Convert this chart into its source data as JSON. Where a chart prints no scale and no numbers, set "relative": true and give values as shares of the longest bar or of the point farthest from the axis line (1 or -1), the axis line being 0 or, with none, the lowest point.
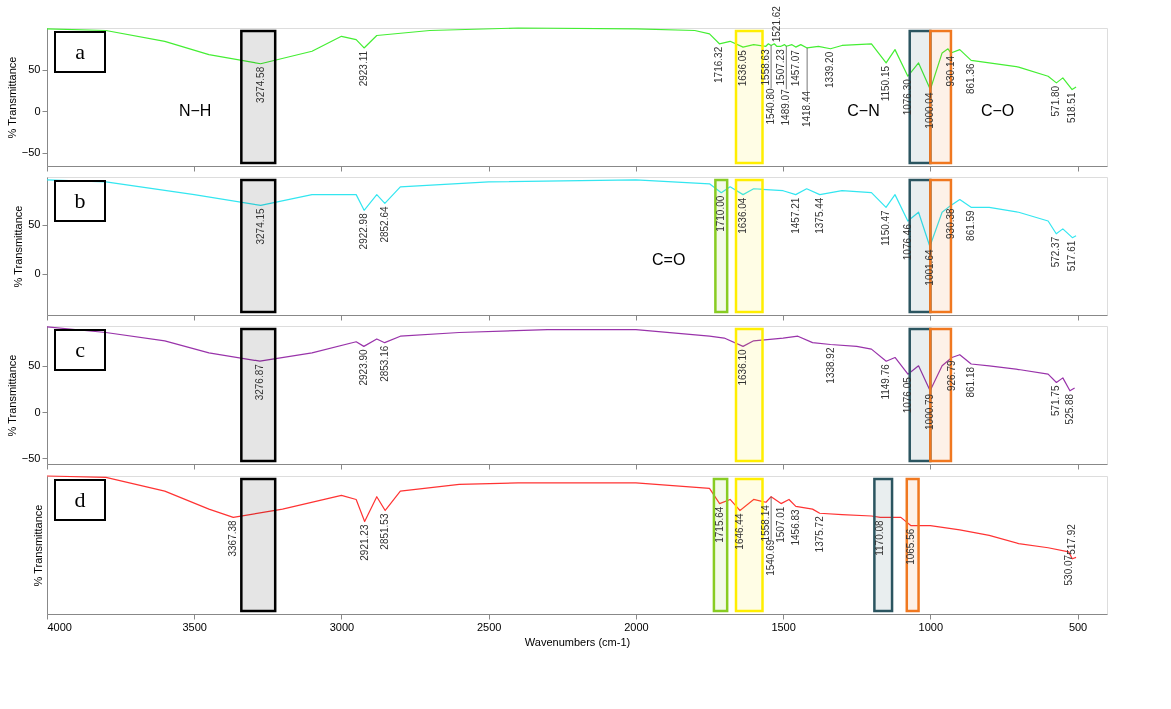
{
  "chart_data": [
    {
      "type": "line",
      "ylabel": "% Transmittance",
      "xlim": [
        4000,
        400
      ],
      "xticks": [
        4000,
        3500,
        3000,
        2500,
        2000,
        1500,
        1000,
        500
      ],
      "ylim": [
        -66,
        100
      ],
      "yticks": [
        50,
        0,
        -50
      ],
      "tick_labels": "y",
      "series": [
        {
          "color": "#44ee33",
          "x": [
            4000,
            3800,
            3600,
            3450,
            3274.58,
            3100,
            3000,
            2950,
            2923.11,
            2880,
            2700,
            2400,
            2000,
            1800,
            1750,
            1716.32,
            1680,
            1636.05,
            1600,
            1558.63,
            1550,
            1540.8,
            1530,
            1521.62,
            1507.23,
            1495,
            1489.07,
            1470,
            1457.07,
            1440,
            1418.44,
            1380,
            1339.2,
            1300,
            1200,
            1150.15,
            1120,
            1076.3,
            1040,
            1000.04,
            960,
            940,
            930.14,
            900,
            861.36,
            800,
            700,
            600,
            571.8,
            550,
            518.51,
            505
          ],
          "values": [
            99,
            97,
            84,
            68,
            57,
            72,
            90,
            86,
            76,
            91,
            97,
            100,
            99,
            97,
            93,
            81,
            84,
            77,
            80,
            78,
            81,
            79,
            81,
            78,
            78,
            80,
            78,
            80,
            77,
            80,
            76,
            78,
            75,
            79,
            81,
            58,
            74,
            42,
            58,
            26,
            70,
            75,
            70,
            74,
            61,
            58,
            53,
            42,
            34,
            40,
            26,
            29
          ]
        }
      ],
      "bands": [
        {
          "axis": "x",
          "from": 3340,
          "to": 3225,
          "label": "N−H",
          "color": "#000000"
        },
        {
          "axis": "x",
          "from": 1660,
          "to": 1570,
          "label": null,
          "color": "#ffee00"
        },
        {
          "axis": "x",
          "from": 1070,
          "to": 1000,
          "label": "C−N",
          "color": "#2b5560"
        },
        {
          "axis": "x",
          "from": 1000,
          "to": 930,
          "label": "C−O",
          "color": "#f07820"
        }
      ],
      "annotations": [
        "a",
        {
          "text": "3274.58",
          "x": 3274.58,
          "y": 57
        },
        {
          "text": "2923.11",
          "x": 2923.11,
          "y": 76
        },
        {
          "text": "1716.32",
          "x": 1716.32,
          "y": 81
        },
        {
          "text": "1636.05",
          "x": 1636.05,
          "y": 77
        },
        {
          "text": "1558.63",
          "x": 1558.63,
          "y": 78
        },
        {
          "text": "1540.80",
          "x": 1540.8,
          "y": 79
        },
        {
          "text": "1521.62",
          "x": 1521.62,
          "y": 78
        },
        {
          "text": "1507.23",
          "x": 1507.23,
          "y": 78
        },
        {
          "text": "1489.07",
          "x": 1489.07,
          "y": 78
        },
        {
          "text": "1457.07",
          "x": 1457.07,
          "y": 77
        },
        {
          "text": "1418.44",
          "x": 1418.44,
          "y": 76
        },
        {
          "text": "1339.20",
          "x": 1339.2,
          "y": 75
        },
        {
          "text": "1150.15",
          "x": 1150.15,
          "y": 58
        },
        {
          "text": "1076.30",
          "x": 1076.3,
          "y": 42
        },
        {
          "text": "1000.04",
          "x": 1000.04,
          "y": 26
        },
        {
          "text": "930.14",
          "x": 930.14,
          "y": 70
        },
        {
          "text": "861.36",
          "x": 861.36,
          "y": 61
        },
        {
          "text": "571.80",
          "x": 571.8,
          "y": 34
        },
        {
          "text": "518.51",
          "x": 518.51,
          "y": 26
        }
      ]
    },
    {
      "type": "line",
      "ylabel": "% Transmittance",
      "xlim": [
        4000,
        400
      ],
      "xticks": [
        4000,
        3500,
        3000,
        2500,
        2000,
        1500,
        1000,
        500
      ],
      "ylim": [
        -42,
        99
      ],
      "yticks": [
        50,
        0
      ],
      "tick_labels": "y",
      "series": [
        {
          "color": "#33e6f0",
          "x": [
            4000,
            3800,
            3500,
            3274.15,
            3100,
            2950,
            2922.98,
            2880,
            2852.64,
            2800,
            2500,
            2000,
            1750,
            1710,
            1680,
            1636.04,
            1600,
            1500,
            1457.21,
            1420,
            1375.44,
            1300,
            1200,
            1150.47,
            1120,
            1076.46,
            1040,
            1001.64,
            960,
            930.38,
            900,
            861.59,
            800,
            700,
            600,
            572.37,
            550,
            517.61,
            505
          ],
          "values": [
            96,
            94,
            81,
            70,
            81,
            81,
            65,
            81,
            72,
            89,
            94,
            96,
            92,
            83,
            89,
            81,
            87,
            85,
            81,
            87,
            81,
            85,
            83,
            68,
            81,
            54,
            63,
            28,
            63,
            70,
            76,
            68,
            68,
            63,
            54,
            41,
            46,
            37,
            39
          ]
        }
      ],
      "bands": [
        {
          "axis": "x",
          "from": 3340,
          "to": 3225,
          "label": null,
          "color": "#000000"
        },
        {
          "axis": "x",
          "from": 1730,
          "to": 1690,
          "label": "C=O",
          "color": "#88cc22"
        },
        {
          "axis": "x",
          "from": 1660,
          "to": 1570,
          "label": null,
          "color": "#ffee00"
        },
        {
          "axis": "x",
          "from": 1070,
          "to": 1000,
          "label": null,
          "color": "#2b5560"
        },
        {
          "axis": "x",
          "from": 1000,
          "to": 930,
          "label": null,
          "color": "#f07820"
        }
      ],
      "annotations": [
        "b",
        {
          "text": "3274.15",
          "x": 3274.15,
          "y": 70
        },
        {
          "text": "2922.98",
          "x": 2922.98,
          "y": 65
        },
        {
          "text": "2852.64",
          "x": 2852.64,
          "y": 72
        },
        {
          "text": "1710.00",
          "x": 1710,
          "y": 83
        },
        {
          "text": "1636.04",
          "x": 1636.04,
          "y": 81
        },
        {
          "text": "1457.21",
          "x": 1457.21,
          "y": 81
        },
        {
          "text": "1375.44",
          "x": 1375.44,
          "y": 81
        },
        {
          "text": "1150.47",
          "x": 1150.47,
          "y": 68
        },
        {
          "text": "1076.46",
          "x": 1076.46,
          "y": 54
        },
        {
          "text": "1001.64",
          "x": 1001.64,
          "y": 28
        },
        {
          "text": "930.38",
          "x": 930.38,
          "y": 70
        },
        {
          "text": "861.59",
          "x": 861.59,
          "y": 68
        },
        {
          "text": "572.37",
          "x": 572.37,
          "y": 41
        },
        {
          "text": "517.61",
          "x": 517.61,
          "y": 37
        }
      ]
    },
    {
      "type": "line",
      "ylabel": "% Transmittance",
      "xlim": [
        4000,
        400
      ],
      "xticks": [
        4000,
        3500,
        3000,
        2500,
        2000,
        1500,
        1000,
        500
      ],
      "ylim": [
        -56,
        93
      ],
      "yticks": [
        50,
        0,
        -50
      ],
      "tick_labels": "y",
      "series": [
        {
          "color": "#9933aa",
          "x": [
            4000,
            3800,
            3600,
            3450,
            3276.87,
            3100,
            2950,
            2923.9,
            2880,
            2853.16,
            2800,
            2600,
            2300,
            2000,
            1750,
            1700,
            1636.1,
            1600,
            1500,
            1450,
            1400,
            1338.92,
            1250,
            1200,
            1149.76,
            1120,
            1076.05,
            1040,
            1000.79,
            960,
            926.79,
            900,
            861.18,
            800,
            700,
            600,
            571.75,
            550,
            525.88,
            510
          ],
          "values": [
            92,
            86,
            77,
            64,
            55,
            64,
            76,
            71,
            79,
            75,
            82,
            86,
            89,
            89,
            82,
            80,
            71,
            77,
            80,
            82,
            75,
            73,
            71,
            68,
            55,
            59,
            41,
            50,
            23,
            50,
            59,
            62,
            52,
            50,
            46,
            41,
            32,
            37,
            23,
            26
          ]
        }
      ],
      "bands": [
        {
          "axis": "x",
          "from": 3340,
          "to": 3225,
          "label": null,
          "color": "#000000"
        },
        {
          "axis": "x",
          "from": 1660,
          "to": 1570,
          "label": null,
          "color": "#ffee00"
        },
        {
          "axis": "x",
          "from": 1070,
          "to": 1000,
          "label": null,
          "color": "#2b5560"
        },
        {
          "axis": "x",
          "from": 1000,
          "to": 930,
          "label": null,
          "color": "#f07820"
        }
      ],
      "annotations": [
        "c",
        {
          "text": "3276.87",
          "x": 3276.87,
          "y": 55
        },
        {
          "text": "2923.90",
          "x": 2923.9,
          "y": 71
        },
        {
          "text": "2853.16",
          "x": 2853.16,
          "y": 75
        },
        {
          "text": "1636.10",
          "x": 1636.1,
          "y": 71
        },
        {
          "text": "1338.92",
          "x": 1338.92,
          "y": 73
        },
        {
          "text": "1149.76",
          "x": 1149.76,
          "y": 55
        },
        {
          "text": "1076.05",
          "x": 1076.05,
          "y": 41
        },
        {
          "text": "1000.79",
          "x": 1000.79,
          "y": 23
        },
        {
          "text": "926.79",
          "x": 926.79,
          "y": 59
        },
        {
          "text": "861.18",
          "x": 861.18,
          "y": 52
        },
        {
          "text": "571.75",
          "x": 571.75,
          "y": 32
        },
        {
          "text": "525.88",
          "x": 525.88,
          "y": 23
        }
      ]
    },
    {
      "type": "line",
      "ylabel": "% Transmittance",
      "xlabel": "Wavenumbers (cm-1)",
      "xlim": [
        4000,
        400
      ],
      "xticks": [
        4000,
        3500,
        3000,
        2500,
        2000,
        1500,
        1000,
        500
      ],
      "relative": true,
      "series": [
        {
          "color": "#ff3333",
          "x": [
            4000,
            3800,
            3600,
            3450,
            3367.38,
            3200,
            3000,
            2950,
            2921.23,
            2880,
            2851.53,
            2800,
            2600,
            2400,
            2000,
            1750,
            1715.64,
            1680,
            1646.44,
            1600,
            1558.14,
            1540.69,
            1507.01,
            1480,
            1456.83,
            1400,
            1375.72,
            1300,
            1200,
            1170.08,
            1100,
            1065.56,
            1000,
            900,
            800,
            700,
            600,
            530.07,
            517.92,
            505
          ],
          "values": [
            1.0,
            0.99,
            0.89,
            0.76,
            0.7,
            0.76,
            0.86,
            0.83,
            0.67,
            0.85,
            0.75,
            0.89,
            0.94,
            0.95,
            0.95,
            0.91,
            0.8,
            0.83,
            0.75,
            0.83,
            0.81,
            0.85,
            0.8,
            0.83,
            0.78,
            0.76,
            0.73,
            0.72,
            0.71,
            0.7,
            0.7,
            0.64,
            0.64,
            0.61,
            0.57,
            0.51,
            0.48,
            0.45,
            0.4,
            0.41
          ]
        }
      ],
      "bands": [
        {
          "axis": "x",
          "from": 3340,
          "to": 3225,
          "label": null,
          "color": "#000000"
        },
        {
          "axis": "x",
          "from": 1735,
          "to": 1690,
          "label": null,
          "color": "#88cc22"
        },
        {
          "axis": "x",
          "from": 1660,
          "to": 1570,
          "label": null,
          "color": "#ffee00"
        },
        {
          "axis": "x",
          "from": 1190,
          "to": 1130,
          "label": null,
          "color": "#2b5560"
        },
        {
          "axis": "x",
          "from": 1080,
          "to": 1040,
          "label": null,
          "color": "#f07820"
        }
      ],
      "annotations": [
        "d",
        {
          "text": "3367.38",
          "x": 3367.38,
          "y": 0.7
        },
        {
          "text": "2921.23",
          "x": 2921.23,
          "y": 0.67
        },
        {
          "text": "2851.53",
          "x": 2851.53,
          "y": 0.75
        },
        {
          "text": "1715.64",
          "x": 1715.64,
          "y": 0.8
        },
        {
          "text": "1646.44",
          "x": 1646.44,
          "y": 0.75
        },
        {
          "text": "1558.14",
          "x": 1558.14,
          "y": 0.81
        },
        {
          "text": "1540.69",
          "x": 1540.69,
          "y": 0.85
        },
        {
          "text": "1507.01",
          "x": 1507.01,
          "y": 0.8
        },
        {
          "text": "1456.83",
          "x": 1456.83,
          "y": 0.78
        },
        {
          "text": "1375.72",
          "x": 1375.72,
          "y": 0.73
        },
        {
          "text": "1170.08",
          "x": 1170.08,
          "y": 0.7
        },
        {
          "text": "1065.56",
          "x": 1065.56,
          "y": 0.64
        },
        {
          "text": "530.07",
          "x": 530.07,
          "y": 0.45
        },
        {
          "text": "517.92",
          "x": 517.92,
          "y": 0.4
        }
      ]
    }
  ]
}
